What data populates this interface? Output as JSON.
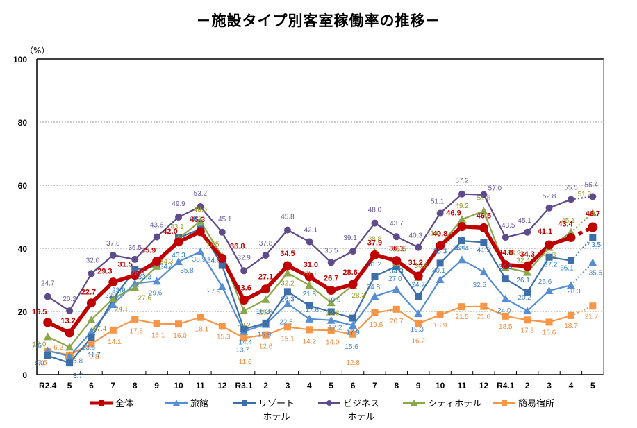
{
  "chart_data": {
    "type": "line",
    "title": "－施設タイプ別客室稼働率の推移－",
    "ylabel": "（%）",
    "xlabel": "",
    "ylim": [
      0,
      100
    ],
    "yticks": [
      0,
      20,
      40,
      60,
      80,
      100
    ],
    "grid": true,
    "legend_position": "bottom",
    "categories": [
      "R2.4",
      "5",
      "6",
      "7",
      "8",
      "9",
      "10",
      "11",
      "12",
      "R3.1",
      "2",
      "3",
      "4",
      "5",
      "6",
      "7",
      "8",
      "9",
      "10",
      "11",
      "12",
      "R4.1",
      "2",
      "3",
      "4",
      "5"
    ],
    "last_point_dotted": true,
    "series": [
      {
        "name": "全体",
        "key": "total",
        "color": "#c00000",
        "label_color": "#c00000",
        "marker": "circle",
        "values": [
          16.5,
          13.2,
          22.7,
          29.3,
          31.5,
          35.9,
          42.0,
          45.3,
          36.8,
          23.6,
          27.1,
          34.5,
          31.0,
          26.7,
          28.6,
          37.9,
          36.1,
          31.2,
          40.8,
          46.9,
          46.5,
          34.8,
          34.3,
          41.1,
          43.4,
          46.7
        ]
      },
      {
        "name": "旅館",
        "key": "ryokan",
        "color": "#558ed5",
        "label_color": "#4a86d0",
        "marker": "triangle",
        "values": [
          7.6,
          5.8,
          13.6,
          22.2,
          28.9,
          29.6,
          35.8,
          38.9,
          27.9,
          13.7,
          15.9,
          22.5,
          17.6,
          17.2,
          15.6,
          24.8,
          27.0,
          19.3,
          30.1,
          36.4,
          32.5,
          24.0,
          20.2,
          26.6,
          28.3,
          35.5
        ]
      },
      {
        "name": "リゾート\nホテル",
        "key": "resort",
        "color": "#3c6ea8",
        "label_color": "#1f78c8",
        "marker": "square",
        "values": [
          6.0,
          3.7,
          11.7,
          23.9,
          33.3,
          34.4,
          43.3,
          46.1,
          34.6,
          14.4,
          16.3,
          26.3,
          21.8,
          19.9,
          17.9,
          31.2,
          34.3,
          24.7,
          35.3,
          42.4,
          41.9,
          30.3,
          26.1,
          37.2,
          36.1,
          43.5
        ]
      },
      {
        "name": "ビジネス\nホテル",
        "key": "business",
        "color": "#5f4a8b",
        "label_color": "#6a5a9c",
        "marker": "circle",
        "values": [
          24.7,
          20.2,
          32.0,
          37.8,
          36.5,
          43.6,
          49.9,
          53.2,
          45.1,
          32.9,
          37.8,
          45.8,
          42.1,
          35.5,
          39.1,
          48.0,
          43.7,
          40.3,
          51.1,
          57.2,
          57.0,
          43.5,
          45.1,
          52.8,
          55.5,
          56.4
        ]
      },
      {
        "name": "シティホテル",
        "key": "city",
        "color": "#8aa84a",
        "label_color": "#9a9a2a",
        "marker": "triangle",
        "values": [
          12.0,
          8.7,
          17.4,
          24.1,
          27.6,
          34.3,
          43.1,
          48.6,
          37.5,
          20.2,
          23.8,
          32.2,
          28.3,
          22.8,
          28.3,
          38.8,
          35.5,
          30.8,
          41.0,
          49.2,
          51.8,
          33.9,
          32.4,
          40.3,
          45.1,
          51.2
        ]
      },
      {
        "name": "簡易宿所",
        "key": "simple",
        "color": "#f79646",
        "label_color": "#f08a3c",
        "marker": "square",
        "values": [
          7.5,
          6.2,
          9.8,
          14.1,
          17.5,
          16.1,
          16.0,
          18.1,
          15.3,
          11.6,
          12.6,
          15.1,
          14.2,
          14.0,
          12.8,
          19.6,
          20.7,
          16.2,
          18.9,
          21.5,
          21.6,
          18.5,
          17.3,
          16.6,
          18.7,
          21.7
        ]
      }
    ]
  }
}
